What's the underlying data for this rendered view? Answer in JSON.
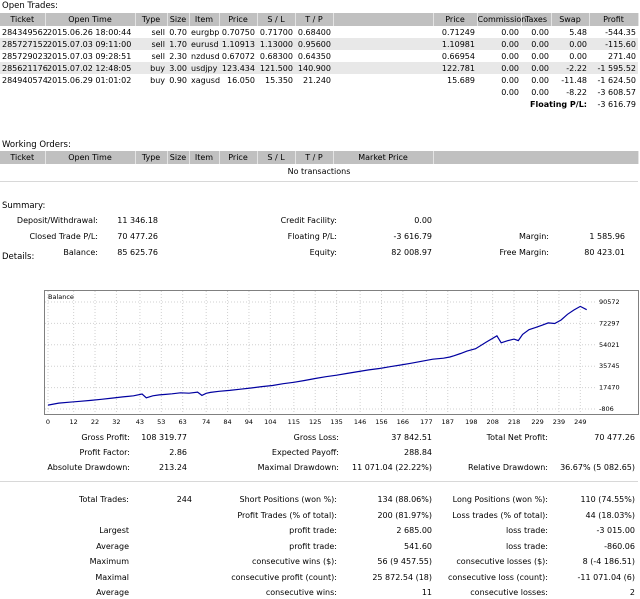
{
  "open_trades": {
    "title": "Open Trades:",
    "headers": [
      "Ticket",
      "Open Time",
      "Type",
      "Size",
      "Item",
      "Price",
      "S / L",
      "T / P",
      "",
      "Price",
      "Commission",
      "Taxes",
      "Swap",
      "Profit"
    ],
    "rows": [
      [
        "284349562",
        "2015.06.26 18:00:44",
        "sell",
        "0.70",
        "eurgbp",
        "0.70750",
        "0.71700",
        "0.68400",
        "",
        "0.71249",
        "0.00",
        "0.00",
        "5.48",
        "-544.35"
      ],
      [
        "285727152",
        "2015.07.03 09:11:00",
        "sell",
        "1.70",
        "eurusd",
        "1.10913",
        "1.13000",
        "0.95600",
        "",
        "1.10981",
        "0.00",
        "0.00",
        "0.00",
        "-115.60"
      ],
      [
        "285729023",
        "2015.07.03 09:28:51",
        "sell",
        "2.30",
        "nzdusd",
        "0.67072",
        "0.68300",
        "0.64350",
        "",
        "0.66954",
        "0.00",
        "0.00",
        "0.00",
        "271.40"
      ],
      [
        "285621176",
        "2015.07.02 12:48:05",
        "buy",
        "3.00",
        "usdjpy",
        "123.434",
        "121.500",
        "140.900",
        "",
        "122.781",
        "0.00",
        "0.00",
        "-2.22",
        "-1 595.52"
      ],
      [
        "284940574",
        "2015.06.29 01:01:02",
        "buy",
        "0.90",
        "xagusd",
        "16.050",
        "15.350",
        "21.240",
        "",
        "15.689",
        "0.00",
        "0.00",
        "-11.48",
        "-1 624.50"
      ]
    ],
    "totals": {
      "commission": "0.00",
      "taxes": "0.00",
      "swap": "-8.22",
      "profit": "-3 608.57"
    },
    "floating_label": "Floating P/L:",
    "floating_value": "-3 616.79"
  },
  "working_orders": {
    "title": "Working Orders:",
    "headers": [
      "Ticket",
      "Open Time",
      "Type",
      "Size",
      "Item",
      "Price",
      "S / L",
      "T / P",
      "Market Price"
    ],
    "empty": "No transactions"
  },
  "summary": {
    "title": "Summary:",
    "rows": [
      [
        [
          "Deposit/Withdrawal:",
          "11 346.18"
        ],
        [
          "Credit Facility:",
          "0.00"
        ],
        [
          "",
          ""
        ]
      ],
      [
        [
          "Closed Trade P/L:",
          "70 477.26"
        ],
        [
          "Floating P/L:",
          "-3 616.79"
        ],
        [
          "Margin:",
          "1 585.96"
        ]
      ],
      [
        [
          "Balance:",
          "85 625.76"
        ],
        [
          "Equity:",
          "82 008.97"
        ],
        [
          "Free Margin:",
          "80 423.01"
        ]
      ]
    ]
  },
  "details": {
    "title": "Details:",
    "stats": [
      [
        [
          "Gross Profit:",
          "108 319.77"
        ],
        [
          "Gross Loss:",
          "37 842.51"
        ],
        [
          "Total Net Profit:",
          "70 477.26"
        ]
      ],
      [
        [
          "Profit Factor:",
          "2.86"
        ],
        [
          "Expected Payoff:",
          "288.84"
        ],
        [
          "",
          ""
        ]
      ],
      [
        [
          "Absolute Drawdown:",
          "213.24"
        ],
        [
          "Maximal Drawdown:",
          "11 071.04 (22.22%)"
        ],
        [
          "Relative Drawdown:",
          "36.67% (5 082.65)"
        ]
      ]
    ],
    "trade_stats": [
      [
        "Total Trades:",
        "244",
        "Short Positions (won %):",
        "134 (88.06%)",
        "Long Positions (won %):",
        "110 (74.55%)"
      ],
      [
        "",
        "",
        "Profit Trades (% of total):",
        "200 (81.97%)",
        "Loss trades (% of total):",
        "44 (18.03%)"
      ],
      [
        "Largest",
        "",
        "profit trade:",
        "2 685.00",
        "loss trade:",
        "-3 015.00"
      ],
      [
        "Average",
        "",
        "profit trade:",
        "541.60",
        "loss trade:",
        "-860.06"
      ],
      [
        "Maximum",
        "",
        "consecutive wins ($):",
        "56 (9 457.55)",
        "consecutive losses ($):",
        "8 (-4 186.51)"
      ],
      [
        "Maximal",
        "",
        "consecutive profit (count):",
        "25 872.54 (18)",
        "consecutive loss (count):",
        "-11 071.04 (6)"
      ],
      [
        "Average",
        "",
        "consecutive wins:",
        "11",
        "consecutive losses:",
        "2"
      ]
    ]
  },
  "chart_data": {
    "type": "line",
    "title": "Balance",
    "x_ticks": [
      "0",
      "12",
      "22",
      "32",
      "43",
      "53",
      "63",
      "74",
      "84",
      "94",
      "104",
      "115",
      "125",
      "135",
      "146",
      "156",
      "166",
      "177",
      "187",
      "198",
      "208",
      "218",
      "229",
      "239",
      "249"
    ],
    "y_ticks": [
      "90572",
      "72297",
      "54021",
      "35745",
      "17470",
      "-806"
    ],
    "ylim": [
      -806,
      90572
    ],
    "xlim": [
      0,
      254
    ],
    "series": [
      {
        "color": "#0000a0",
        "x": [
          0,
          5,
          10,
          15,
          20,
          25,
          30,
          35,
          40,
          44,
          46,
          49,
          52,
          55,
          58,
          62,
          66,
          70,
          72,
          74,
          76,
          80,
          85,
          90,
          95,
          100,
          105,
          110,
          115,
          120,
          125,
          130,
          135,
          140,
          145,
          150,
          155,
          160,
          165,
          170,
          175,
          180,
          185,
          188,
          190,
          193,
          196,
          200,
          205,
          210,
          212,
          215,
          218,
          220,
          222,
          225,
          228,
          231,
          234,
          237,
          240,
          243,
          246,
          249,
          252
        ],
        "y": [
          2500,
          4200,
          5000,
          5800,
          6500,
          7500,
          8500,
          9500,
          10500,
          12000,
          8800,
          10500,
          11200,
          11700,
          12200,
          13000,
          12700,
          13600,
          10800,
          12600,
          13400,
          14300,
          15100,
          16100,
          17100,
          18300,
          19300,
          20800,
          22000,
          23500,
          25200,
          26800,
          28100,
          29600,
          31100,
          32600,
          33800,
          35300,
          36800,
          38300,
          40000,
          41700,
          42600,
          43600,
          44700,
          46600,
          48600,
          50700,
          56300,
          61700,
          55700,
          57500,
          58900,
          57600,
          62900,
          66900,
          68700,
          70700,
          72700,
          72200,
          75200,
          80100,
          83700,
          86800,
          84000
        ]
      }
    ]
  }
}
